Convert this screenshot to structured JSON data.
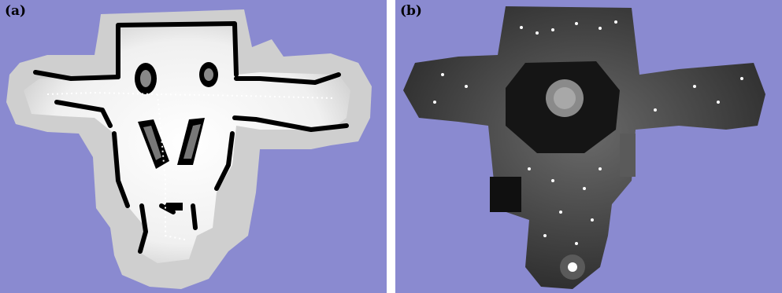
{
  "panels": [
    {
      "label": "(a)",
      "kind": "occupancy-grid-map",
      "background": "#8a8ad0"
    },
    {
      "label": "(b)",
      "kind": "grayscale-ceiling-mosaic",
      "background": "#8a8ad0"
    }
  ]
}
